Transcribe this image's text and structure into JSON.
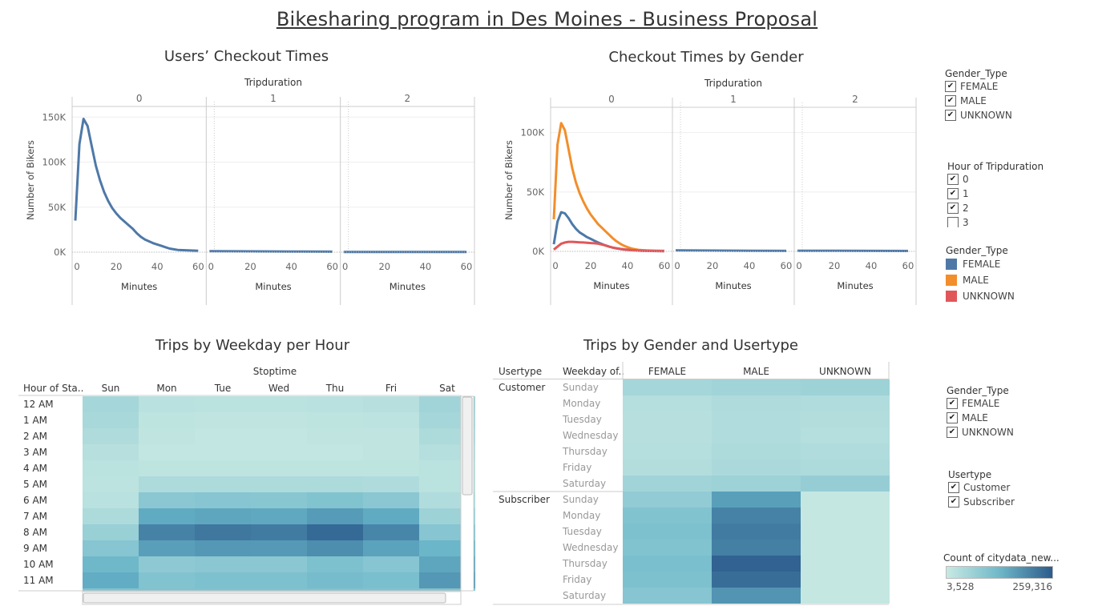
{
  "page_title": "Bikesharing program in Des Moines - Business Proposal",
  "colors": {
    "female": "#4e79a7",
    "male": "#f28e2b",
    "unknown": "#e15759",
    "heat_low": "#c8e9e3",
    "heat_high": "#2c5b8c"
  },
  "chart_data": [
    {
      "type": "line",
      "title": "Users’ Checkout Times",
      "facet_label": "Tripduration",
      "facets": [
        "0",
        "1",
        "2"
      ],
      "xlabel": "Minutes",
      "ylabel": "Number of Bikers",
      "xlim": [
        0,
        60
      ],
      "ylim": [
        0,
        160000
      ],
      "xticks": [
        "0",
        "20",
        "40",
        "60"
      ],
      "yticks": [
        "0K",
        "50K",
        "100K",
        "150K"
      ],
      "series": [
        {
          "facet": "0",
          "color": "#4e79a7",
          "x": [
            0,
            2,
            4,
            6,
            8,
            10,
            12,
            14,
            16,
            18,
            20,
            22,
            24,
            26,
            28,
            30,
            32,
            34,
            36,
            38,
            40,
            42,
            44,
            46,
            48,
            50,
            55,
            60
          ],
          "y": [
            35000,
            120000,
            148000,
            140000,
            118000,
            96000,
            80000,
            67000,
            57000,
            49000,
            43000,
            38000,
            34000,
            30000,
            26000,
            21000,
            17000,
            14000,
            12000,
            10000,
            8500,
            7000,
            5500,
            4000,
            3200,
            2500,
            2000,
            1500
          ]
        },
        {
          "facet": "1",
          "color": "#4e79a7",
          "x": [
            0,
            20,
            40,
            60
          ],
          "y": [
            1200,
            900,
            700,
            500
          ]
        },
        {
          "facet": "2",
          "color": "#4e79a7",
          "x": [
            0,
            20,
            40,
            60
          ],
          "y": [
            300,
            250,
            200,
            150
          ]
        }
      ]
    },
    {
      "type": "line",
      "title": "Checkout Times by Gender",
      "facet_label": "Tripduration",
      "facets": [
        "0",
        "1",
        "2"
      ],
      "xlabel": "Minutes",
      "ylabel": "Number of Bikers",
      "xlim": [
        0,
        60
      ],
      "ylim": [
        0,
        120000
      ],
      "xticks": [
        "0",
        "20",
        "40",
        "60"
      ],
      "yticks": [
        "0K",
        "50K",
        "100K"
      ],
      "series": [
        {
          "name": "MALE",
          "facet": "0",
          "color": "#f28e2b",
          "x": [
            0,
            2,
            4,
            6,
            8,
            10,
            12,
            14,
            16,
            18,
            20,
            22,
            24,
            26,
            28,
            30,
            32,
            34,
            36,
            38,
            40,
            42,
            44,
            46,
            48,
            50,
            55,
            60
          ],
          "y": [
            27000,
            90000,
            108000,
            102000,
            86000,
            70000,
            58000,
            49000,
            42000,
            36000,
            31000,
            27000,
            23000,
            20000,
            17000,
            14000,
            11000,
            8500,
            6500,
            4800,
            3500,
            2500,
            1800,
            1300,
            1000,
            800,
            600,
            400
          ]
        },
        {
          "name": "FEMALE",
          "facet": "0",
          "color": "#4e79a7",
          "x": [
            0,
            2,
            4,
            6,
            8,
            10,
            12,
            14,
            16,
            18,
            20,
            22,
            24,
            26,
            28,
            30,
            32,
            34,
            36,
            38,
            40,
            42,
            44,
            46,
            48,
            50,
            55,
            60
          ],
          "y": [
            6000,
            25000,
            33000,
            32000,
            28000,
            23000,
            19000,
            16000,
            14000,
            12000,
            10500,
            9000,
            7500,
            6200,
            5000,
            4000,
            3200,
            2500,
            2000,
            1600,
            1300,
            1000,
            800,
            600,
            500,
            400,
            300,
            200
          ]
        },
        {
          "name": "UNKNOWN",
          "facet": "0",
          "color": "#e15759",
          "x": [
            0,
            2,
            4,
            6,
            8,
            10,
            12,
            14,
            16,
            18,
            20,
            22,
            24,
            26,
            28,
            30,
            32,
            34,
            36,
            38,
            40,
            42,
            44,
            46,
            48,
            50,
            55,
            60
          ],
          "y": [
            1500,
            4000,
            6500,
            7500,
            8000,
            8000,
            7800,
            7600,
            7500,
            7300,
            7000,
            6800,
            6500,
            5800,
            5000,
            4000,
            3200,
            2600,
            2100,
            1700,
            1400,
            1100,
            900,
            700,
            550,
            450,
            350,
            250
          ]
        },
        {
          "name": "FEMALE",
          "facet": "1",
          "color": "#4e79a7",
          "x": [
            0,
            20,
            40,
            60
          ],
          "y": [
            900,
            700,
            500,
            400
          ]
        },
        {
          "name": "FEMALE",
          "facet": "2",
          "color": "#4e79a7",
          "x": [
            0,
            20,
            40,
            60
          ],
          "y": [
            500,
            450,
            400,
            350
          ]
        }
      ]
    },
    {
      "type": "heatmap",
      "title": "Trips by Weekday per Hour",
      "column_group_label": "Stoptime",
      "row_header": "Hour of Sta..",
      "columns": [
        "Sun",
        "Mon",
        "Tue",
        "Wed",
        "Thu",
        "Fri",
        "Sat"
      ],
      "rows": [
        "12 AM",
        "1 AM",
        "2 AM",
        "3 AM",
        "4 AM",
        "5 AM",
        "6 AM",
        "7 AM",
        "8 AM",
        "9 AM",
        "10 AM",
        "11 AM"
      ],
      "values": [
        [
          0.18,
          0.08,
          0.07,
          0.07,
          0.08,
          0.09,
          0.2
        ],
        [
          0.16,
          0.05,
          0.04,
          0.04,
          0.05,
          0.06,
          0.18
        ],
        [
          0.13,
          0.04,
          0.03,
          0.03,
          0.04,
          0.04,
          0.14
        ],
        [
          0.09,
          0.03,
          0.03,
          0.03,
          0.03,
          0.04,
          0.1
        ],
        [
          0.07,
          0.05,
          0.05,
          0.05,
          0.05,
          0.05,
          0.07
        ],
        [
          0.06,
          0.14,
          0.14,
          0.14,
          0.14,
          0.13,
          0.07
        ],
        [
          0.08,
          0.32,
          0.34,
          0.33,
          0.36,
          0.32,
          0.12
        ],
        [
          0.14,
          0.55,
          0.58,
          0.57,
          0.64,
          0.55,
          0.22
        ],
        [
          0.24,
          0.78,
          0.84,
          0.82,
          0.92,
          0.76,
          0.34
        ],
        [
          0.34,
          0.62,
          0.66,
          0.65,
          0.72,
          0.6,
          0.48
        ],
        [
          0.46,
          0.3,
          0.32,
          0.32,
          0.38,
          0.34,
          0.58
        ],
        [
          0.54,
          0.36,
          0.38,
          0.38,
          0.42,
          0.4,
          0.66
        ]
      ]
    },
    {
      "type": "heatmap",
      "title": "Trips by Gender and Usertype",
      "row_headers": [
        "Usertype",
        "Weekday of.."
      ],
      "columns": [
        "FEMALE",
        "MALE",
        "UNKNOWN"
      ],
      "groups": [
        {
          "usertype": "Customer",
          "days": [
            "Sunday",
            "Monday",
            "Tuesday",
            "Wednesday",
            "Thursday",
            "Friday",
            "Saturday"
          ],
          "values": [
            [
              0.18,
              0.2,
              0.22
            ],
            [
              0.1,
              0.13,
              0.12
            ],
            [
              0.09,
              0.12,
              0.11
            ],
            [
              0.09,
              0.12,
              0.1
            ],
            [
              0.1,
              0.14,
              0.12
            ],
            [
              0.11,
              0.15,
              0.14
            ],
            [
              0.2,
              0.22,
              0.26
            ]
          ]
        },
        {
          "usertype": "Subscriber",
          "days": [
            "Sunday",
            "Monday",
            "Tuesday",
            "Wednesday",
            "Thursday",
            "Friday",
            "Saturday"
          ],
          "values": [
            [
              0.28,
              0.62,
              0.02
            ],
            [
              0.36,
              0.78,
              0.02
            ],
            [
              0.38,
              0.82,
              0.02
            ],
            [
              0.36,
              0.8,
              0.02
            ],
            [
              0.4,
              0.96,
              0.02
            ],
            [
              0.38,
              0.9,
              0.02
            ],
            [
              0.34,
              0.68,
              0.02
            ]
          ]
        }
      ]
    }
  ],
  "legends": {
    "top_filter": {
      "title": "Gender_Type",
      "items": [
        "FEMALE",
        "MALE",
        "UNKNOWN"
      ]
    },
    "hour_filter": {
      "title": "Hour of Tripduration",
      "items": [
        "0",
        "1",
        "2",
        "3"
      ]
    },
    "color_legend": {
      "title": "Gender_Type",
      "items": [
        "FEMALE",
        "MALE",
        "UNKNOWN"
      ]
    },
    "bottom_filter": {
      "title": "Gender_Type",
      "items": [
        "FEMALE",
        "MALE",
        "UNKNOWN"
      ]
    },
    "usertype_filter": {
      "title": "Usertype",
      "items": [
        "Customer",
        "Subscriber"
      ]
    },
    "gradient": {
      "title": "Count of citydata_new...",
      "min": "3,528",
      "max": "259,316"
    }
  }
}
